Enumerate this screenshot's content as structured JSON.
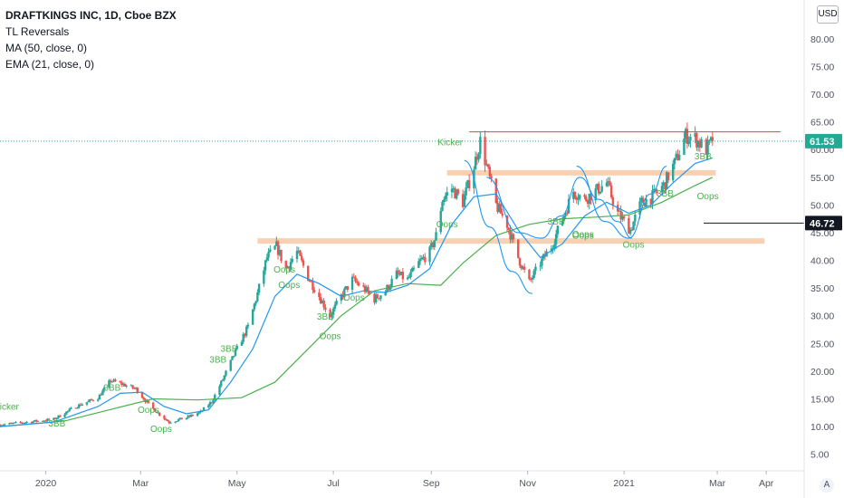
{
  "chart_data": {
    "type": "candlestick",
    "title": "DRAFTKINGS INC, 1D, Cboe BZX",
    "currency": "USD",
    "auto_scale_label": "A",
    "indicators": [
      "TL Reversals",
      "MA (50, close, 0)",
      "EMA (21, close, 0)"
    ],
    "y_ticks": [
      "5.00",
      "10.00",
      "15.00",
      "20.00",
      "25.00",
      "30.00",
      "35.00",
      "40.00",
      "45.00",
      "50.00",
      "55.00",
      "60.00",
      "65.00",
      "70.00",
      "75.00",
      "80.00"
    ],
    "ylim": [
      2,
      87
    ],
    "x_ticks": [
      {
        "label": "2020",
        "date": "2020-01-01"
      },
      {
        "label": "Mar",
        "date": "2020-03-01"
      },
      {
        "label": "May",
        "date": "2020-05-01"
      },
      {
        "label": "Jul",
        "date": "2020-07-01"
      },
      {
        "label": "Sep",
        "date": "2020-09-01"
      },
      {
        "label": "Nov",
        "date": "2020-11-01"
      },
      {
        "label": "2021",
        "date": "2021-01-01"
      },
      {
        "label": "Mar",
        "date": "2021-03-01"
      },
      {
        "label": "Apr",
        "date": "2021-04-01"
      }
    ],
    "xlim": [
      "2019-12-03",
      "2021-04-25"
    ],
    "colors": {
      "up": "#26a69a",
      "down": "#ef5350",
      "ma": "#4caf50",
      "ema": "#2196f3",
      "zone": "#f7c9a6",
      "resistance": "#f23645",
      "label_text": "#4caf50"
    },
    "last_price": {
      "value": 61.53,
      "label": "61.53",
      "color": "#22ab94"
    },
    "marker_price": {
      "value": 46.72,
      "label": "46.72",
      "color": "#131722"
    },
    "horizontal_lines": [
      {
        "y": 63.2,
        "from": "2020-09-25",
        "to": "2021-04-10",
        "color": "#f23645"
      }
    ],
    "zones": [
      {
        "y": 43.5,
        "from": "2020-05-14",
        "to": "2021-03-31",
        "color": "#f7c9a6"
      },
      {
        "y": 55.8,
        "from": "2020-09-11",
        "to": "2021-02-28",
        "color": "#f7c9a6"
      }
    ],
    "curved_lines": [
      {
        "points": [
          [
            "2020-09-22",
            58
          ],
          [
            "2020-10-08",
            46
          ],
          [
            "2020-10-22",
            38
          ],
          [
            "2020-11-04",
            34
          ]
        ],
        "color": "#2196f3"
      },
      {
        "points": [
          [
            "2020-10-06",
            55
          ],
          [
            "2020-10-26",
            45
          ],
          [
            "2020-11-10",
            44
          ],
          [
            "2020-11-22",
            48
          ],
          [
            "2020-12-04",
            55
          ],
          [
            "2020-12-16",
            51
          ],
          [
            "2020-12-28",
            47
          ],
          [
            "2021-01-06",
            44
          ]
        ],
        "color": "#2196f3"
      },
      {
        "points": [
          [
            "2020-12-02",
            57
          ],
          [
            "2020-12-20",
            47
          ],
          [
            "2021-01-04",
            44
          ],
          [
            "2021-01-18",
            52
          ],
          [
            "2021-01-28",
            57
          ]
        ],
        "color": "#2196f3"
      }
    ],
    "annotations": [
      {
        "text": "Kicker",
        "date": "2019-12-07",
        "y": 13.0
      },
      {
        "text": "3BB",
        "date": "2020-01-08",
        "y": 10.0
      },
      {
        "text": "3BB",
        "date": "2020-02-12",
        "y": 16.5
      },
      {
        "text": "Oops",
        "date": "2020-03-06",
        "y": 12.5
      },
      {
        "text": "Oops",
        "date": "2020-03-14",
        "y": 9.0
      },
      {
        "text": "3BB",
        "date": "2020-04-26",
        "y": 23.5
      },
      {
        "text": "3BB",
        "date": "2020-04-19",
        "y": 21.5
      },
      {
        "text": "Oops",
        "date": "2020-05-31",
        "y": 37.8
      },
      {
        "text": "Oops",
        "date": "2020-06-03",
        "y": 35.0
      },
      {
        "text": "3BB",
        "date": "2020-06-26",
        "y": 29.3
      },
      {
        "text": "Oops",
        "date": "2020-06-29",
        "y": 25.8
      },
      {
        "text": "Oops",
        "date": "2020-07-14",
        "y": 32.7
      },
      {
        "text": "Kicker",
        "date": "2020-09-13",
        "y": 60.8
      },
      {
        "text": "Oops",
        "date": "2020-09-11",
        "y": 46.0
      },
      {
        "text": "3BB",
        "date": "2020-11-19",
        "y": 46.5
      },
      {
        "text": "Oops",
        "date": "2020-12-06",
        "y": 44.2
      },
      {
        "text": "Oops",
        "date": "2020-12-06",
        "y": 43.9
      },
      {
        "text": "Oops",
        "date": "2021-01-07",
        "y": 42.3
      },
      {
        "text": "3BB",
        "date": "2021-01-27",
        "y": 51.5
      },
      {
        "text": "3BB",
        "date": "2021-02-20",
        "y": 58.2
      },
      {
        "text": "Oops",
        "date": "2021-02-23",
        "y": 51.0
      }
    ],
    "price_path": [
      [
        "2019-12-03",
        10.3
      ],
      [
        "2019-12-20",
        10.8
      ],
      [
        "2020-01-06",
        11.3
      ],
      [
        "2020-01-20",
        13.6
      ],
      [
        "2020-02-03",
        15.2
      ],
      [
        "2020-02-11",
        18.3
      ],
      [
        "2020-02-20",
        17.5
      ],
      [
        "2020-02-27",
        16.8
      ],
      [
        "2020-03-06",
        14.0
      ],
      [
        "2020-03-13",
        12.2
      ],
      [
        "2020-03-19",
        10.8
      ],
      [
        "2020-03-30",
        11.6
      ],
      [
        "2020-04-08",
        12.6
      ],
      [
        "2020-04-15",
        14.5
      ],
      [
        "2020-04-22",
        18.5
      ],
      [
        "2020-04-30",
        23.5
      ],
      [
        "2020-05-08",
        28.0
      ],
      [
        "2020-05-14",
        34.0
      ],
      [
        "2020-05-20",
        40.5
      ],
      [
        "2020-05-26",
        42.5
      ],
      [
        "2020-06-01",
        38.5
      ],
      [
        "2020-06-08",
        41.5
      ],
      [
        "2020-06-15",
        37.0
      ],
      [
        "2020-06-22",
        33.5
      ],
      [
        "2020-06-29",
        30.0
      ],
      [
        "2020-07-06",
        33.5
      ],
      [
        "2020-07-13",
        36.5
      ],
      [
        "2020-07-20",
        35.0
      ],
      [
        "2020-07-27",
        33.0
      ],
      [
        "2020-08-03",
        34.5
      ],
      [
        "2020-08-10",
        37.5
      ],
      [
        "2020-08-17",
        36.5
      ],
      [
        "2020-08-24",
        39.5
      ],
      [
        "2020-08-31",
        41.5
      ],
      [
        "2020-09-04",
        44.5
      ],
      [
        "2020-09-08",
        51.0
      ],
      [
        "2020-09-14",
        53.0
      ],
      [
        "2020-09-21",
        50.5
      ],
      [
        "2020-09-28",
        57.0
      ],
      [
        "2020-10-02",
        61.5
      ],
      [
        "2020-10-06",
        57.0
      ],
      [
        "2020-10-12",
        50.0
      ],
      [
        "2020-10-19",
        46.5
      ],
      [
        "2020-10-26",
        40.5
      ],
      [
        "2020-11-02",
        36.0
      ],
      [
        "2020-11-09",
        39.5
      ],
      [
        "2020-11-16",
        42.5
      ],
      [
        "2020-11-23",
        47.5
      ],
      [
        "2020-11-30",
        52.5
      ],
      [
        "2020-12-07",
        51.0
      ],
      [
        "2020-12-14",
        52.5
      ],
      [
        "2020-12-21",
        54.0
      ],
      [
        "2020-12-28",
        48.5
      ],
      [
        "2021-01-05",
        45.5
      ],
      [
        "2021-01-12",
        50.5
      ],
      [
        "2021-01-19",
        51.5
      ],
      [
        "2021-01-26",
        53.5
      ],
      [
        "2021-02-02",
        57.5
      ],
      [
        "2021-02-09",
        62.5
      ],
      [
        "2021-02-15",
        62.0
      ],
      [
        "2021-02-22",
        60.0
      ],
      [
        "2021-02-26",
        61.53
      ]
    ],
    "ema_path": [
      [
        "2019-12-03",
        10.0
      ],
      [
        "2020-01-06",
        10.8
      ],
      [
        "2020-02-03",
        13.6
      ],
      [
        "2020-02-17",
        16.0
      ],
      [
        "2020-03-02",
        16.2
      ],
      [
        "2020-03-16",
        13.6
      ],
      [
        "2020-03-30",
        12.3
      ],
      [
        "2020-04-13",
        13.0
      ],
      [
        "2020-04-27",
        18.0
      ],
      [
        "2020-05-11",
        24.0
      ],
      [
        "2020-05-25",
        33.5
      ],
      [
        "2020-06-08",
        37.5
      ],
      [
        "2020-06-22",
        35.8
      ],
      [
        "2020-07-06",
        33.5
      ],
      [
        "2020-07-20",
        34.5
      ],
      [
        "2020-08-03",
        34.2
      ],
      [
        "2020-08-17",
        35.5
      ],
      [
        "2020-08-31",
        38.5
      ],
      [
        "2020-09-14",
        46.5
      ],
      [
        "2020-09-28",
        51.5
      ],
      [
        "2020-10-12",
        52.0
      ],
      [
        "2020-10-26",
        45.5
      ],
      [
        "2020-11-09",
        40.5
      ],
      [
        "2020-11-23",
        43.0
      ],
      [
        "2020-12-07",
        48.0
      ],
      [
        "2020-12-21",
        50.5
      ],
      [
        "2021-01-04",
        48.5
      ],
      [
        "2021-01-18",
        50.0
      ],
      [
        "2021-02-01",
        54.0
      ],
      [
        "2021-02-15",
        57.5
      ],
      [
        "2021-02-26",
        58.5
      ]
    ],
    "ma_path": [
      [
        "2019-12-03",
        10.0
      ],
      [
        "2020-01-13",
        11.0
      ],
      [
        "2020-02-10",
        13.0
      ],
      [
        "2020-03-09",
        15.0
      ],
      [
        "2020-04-06",
        14.8
      ],
      [
        "2020-05-04",
        15.2
      ],
      [
        "2020-05-25",
        18.0
      ],
      [
        "2020-06-15",
        24.0
      ],
      [
        "2020-07-06",
        30.0
      ],
      [
        "2020-07-27",
        34.5
      ],
      [
        "2020-08-17",
        35.8
      ],
      [
        "2020-09-07",
        35.5
      ],
      [
        "2020-09-21",
        39.5
      ],
      [
        "2020-10-12",
        44.5
      ],
      [
        "2020-11-02",
        46.5
      ],
      [
        "2020-11-23",
        47.5
      ],
      [
        "2020-12-14",
        47.8
      ],
      [
        "2021-01-04",
        48.2
      ],
      [
        "2021-01-25",
        50.5
      ],
      [
        "2021-02-15",
        53.5
      ],
      [
        "2021-02-26",
        55.0
      ]
    ]
  }
}
